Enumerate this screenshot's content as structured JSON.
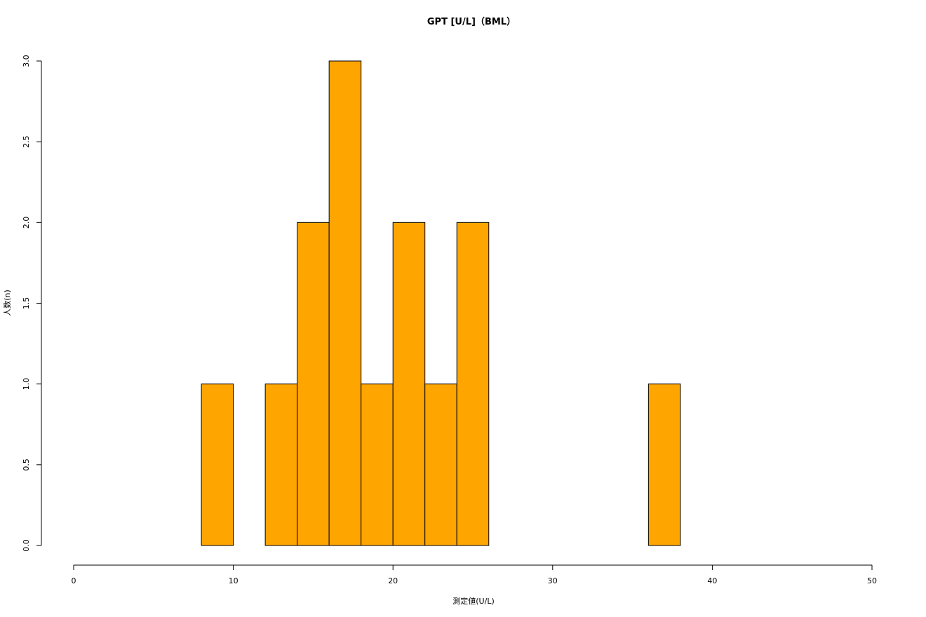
{
  "chart_data": {
    "type": "histogram",
    "title": "GPT [U/L]（BML）",
    "x_label": "測定値(U/L)",
    "y_label": "人数(n)",
    "bins": [
      8,
      10,
      12,
      14,
      16,
      18,
      20,
      22,
      24,
      26,
      28,
      30,
      32,
      34,
      36,
      38
    ],
    "counts": [
      1,
      0,
      1,
      2,
      3,
      1,
      2,
      1,
      2,
      0,
      0,
      0,
      0,
      0,
      1
    ],
    "color": "#ffa500",
    "xlim": [
      0,
      50
    ],
    "xticks": [
      0,
      10,
      20,
      30,
      40,
      50
    ],
    "ylim": [
      0,
      3
    ],
    "yticks": [
      {
        "value": 0,
        "label": "0.0"
      },
      0.5,
      {
        "value": 1,
        "label": "1.0"
      },
      1.5,
      {
        "value": 2,
        "label": "2.0"
      },
      2.5,
      {
        "value": 3,
        "label": "3.0"
      }
    ]
  }
}
